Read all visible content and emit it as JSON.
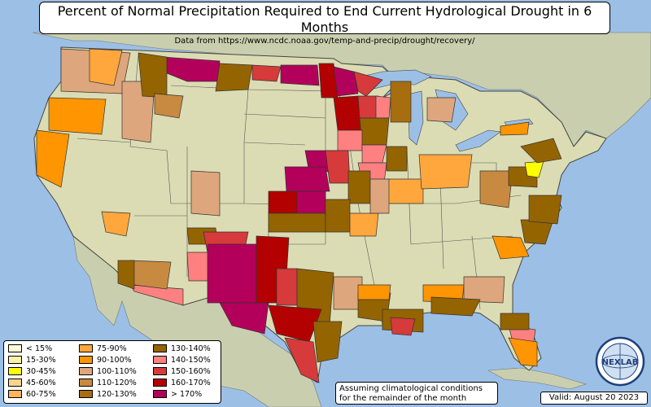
{
  "title": "Percent of Normal Precipitation Required to End Current Hydrological Drought in 6 Months",
  "subtitle": "Data from https://www.ncdc.noaa.gov/temp-and-precip/drought/recovery/",
  "legend": [
    {
      "label": "< 15%",
      "color": "#fffbd6"
    },
    {
      "label": "15-30%",
      "color": "#fff1a8"
    },
    {
      "label": "30-45%",
      "color": "#ffff00"
    },
    {
      "label": "45-60%",
      "color": "#fbd58a"
    },
    {
      "label": "60-75%",
      "color": "#fbb55d"
    },
    {
      "label": "75-90%",
      "color": "#ffa73d"
    },
    {
      "label": "90-100%",
      "color": "#ff9500"
    },
    {
      "label": "100-110%",
      "color": "#dea67c"
    },
    {
      "label": "110-120%",
      "color": "#c88a40"
    },
    {
      "label": "120-130%",
      "color": "#a76e10"
    },
    {
      "label": "130-140%",
      "color": "#946400"
    },
    {
      "label": "140-150%",
      "color": "#ff8080"
    },
    {
      "label": "150-160%",
      "color": "#d63a3a"
    },
    {
      "label": "160-170%",
      "color": "#b30000"
    },
    {
      "label": "> 170%",
      "color": "#b3005a"
    }
  ],
  "note_line1": "Assuming climatological conditions",
  "note_line2": "for the remainder of the month",
  "valid": "Valid: August 20 2023",
  "logo_text": "NEXLAB",
  "colors": {
    "ocean": "#9cbfe6",
    "land": "#dcdcb4",
    "terrain": "#b8c89a"
  }
}
